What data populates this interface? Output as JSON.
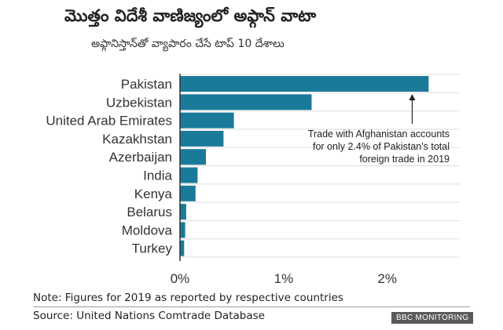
{
  "chart_data": {
    "type": "bar",
    "orientation": "horizontal",
    "title": "మొత్తం విదేశీ వాణిజ్యంలో అఫ్గాన్ వాటా",
    "subtitle": "అఫ్గానిస్తాన్‌తో వ్యాపారం చేసే టాప్ 10 దేశాలు",
    "categories": [
      "Pakistan",
      "Uzbekistan",
      "United Arab Emirates",
      "Kazakhstan",
      "Azerbaijan",
      "India",
      "Kenya",
      "Belarus",
      "Moldova",
      "Turkey"
    ],
    "values": [
      2.4,
      1.27,
      0.52,
      0.42,
      0.25,
      0.17,
      0.15,
      0.06,
      0.05,
      0.04
    ],
    "xlim": [
      0,
      2.7
    ],
    "xticks": [
      0,
      1,
      2
    ],
    "xtick_labels": [
      "0%",
      "1%",
      "2%"
    ],
    "grid": true,
    "bar_color": "#1a7a9a",
    "annotation": {
      "lines": [
        "Trade with Afghanistan accounts",
        "for only 2.4% of Pakistan's total",
        "foreign trade in 2019"
      ],
      "target": "Pakistan"
    }
  },
  "note": "Note: Figures for 2019 as reported by respective countries",
  "source": "Source: United Nations Comtrade Database",
  "badge": "BBC MONITORING"
}
